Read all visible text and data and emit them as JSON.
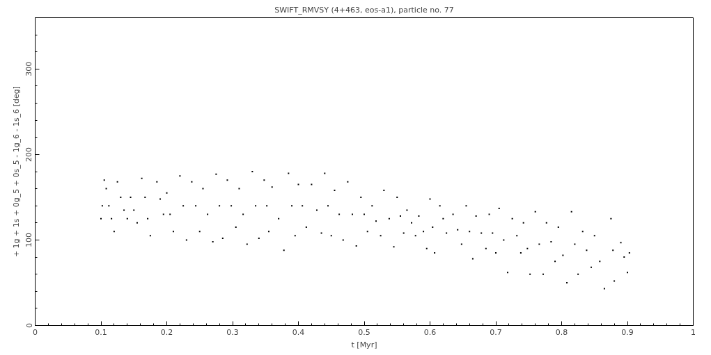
{
  "chart_data": {
    "type": "scatter",
    "title": "SWIFT_RMVSY (4+463, eos-a1), particle no. 77",
    "xlabel": "t [Myr]",
    "ylabel": "+ 1g + 1s + 0g_5 + 0s_5 - 1g_6 - 1s_6 [deg]",
    "xlim": [
      0,
      1
    ],
    "ylim": [
      0,
      360
    ],
    "xticks": [
      0,
      0.1,
      0.2,
      0.3,
      0.4,
      0.5,
      0.6,
      0.7,
      0.8,
      0.9,
      1
    ],
    "yticks": [
      0,
      100,
      200,
      300
    ],
    "grid": false,
    "marker": "square",
    "series": [
      {
        "color": "#000000",
        "x": [
          0.1,
          0.102,
          0.105,
          0.108,
          0.112,
          0.116,
          0.12,
          0.125,
          0.13,
          0.135,
          0.14,
          0.145,
          0.15,
          0.155,
          0.162,
          0.167,
          0.171,
          0.175,
          0.185,
          0.19,
          0.195,
          0.2,
          0.205,
          0.21,
          0.22,
          0.225,
          0.23,
          0.238,
          0.244,
          0.25,
          0.255,
          0.262,
          0.27,
          0.275,
          0.28,
          0.285,
          0.292,
          0.298,
          0.305,
          0.31,
          0.316,
          0.322,
          0.33,
          0.335,
          0.34,
          0.348,
          0.352,
          0.355,
          0.36,
          0.37,
          0.378,
          0.385,
          0.39,
          0.395,
          0.4,
          0.406,
          0.412,
          0.42,
          0.428,
          0.435,
          0.44,
          0.445,
          0.45,
          0.455,
          0.462,
          0.468,
          0.475,
          0.482,
          0.488,
          0.495,
          0.5,
          0.505,
          0.512,
          0.518,
          0.525,
          0.53,
          0.538,
          0.545,
          0.55,
          0.555,
          0.56,
          0.565,
          0.572,
          0.578,
          0.583,
          0.59,
          0.595,
          0.6,
          0.604,
          0.607,
          0.615,
          0.62,
          0.625,
          0.635,
          0.642,
          0.648,
          0.655,
          0.66,
          0.665,
          0.67,
          0.678,
          0.685,
          0.69,
          0.695,
          0.7,
          0.705,
          0.712,
          0.718,
          0.725,
          0.732,
          0.738,
          0.742,
          0.748,
          0.752,
          0.76,
          0.766,
          0.772,
          0.777,
          0.784,
          0.79,
          0.795,
          0.802,
          0.808,
          0.815,
          0.82,
          0.825,
          0.832,
          0.838,
          0.845,
          0.85,
          0.858,
          0.865,
          0.875,
          0.878,
          0.88,
          0.89,
          0.895,
          0.9,
          0.903
        ],
        "values": [
          125,
          140,
          170,
          160,
          140,
          125,
          110,
          168,
          150,
          135,
          125,
          150,
          135,
          120,
          172,
          150,
          125,
          105,
          168,
          148,
          130,
          155,
          130,
          110,
          175,
          140,
          100,
          168,
          140,
          110,
          160,
          130,
          98,
          177,
          140,
          102,
          170,
          140,
          115,
          160,
          130,
          95,
          180,
          140,
          102,
          170,
          140,
          110,
          162,
          125,
          88,
          178,
          140,
          105,
          165,
          140,
          115,
          165,
          135,
          108,
          178,
          140,
          105,
          158,
          130,
          100,
          168,
          130,
          93,
          150,
          130,
          110,
          140,
          122,
          105,
          158,
          125,
          92,
          150,
          128,
          108,
          135,
          120,
          105,
          128,
          110,
          90,
          148,
          115,
          85,
          140,
          125,
          108,
          130,
          112,
          95,
          140,
          110,
          78,
          128,
          108,
          90,
          130,
          108,
          85,
          137,
          100,
          62,
          125,
          105,
          85,
          120,
          90,
          60,
          133,
          95,
          60,
          120,
          98,
          75,
          115,
          82,
          50,
          133,
          95,
          60,
          110,
          88,
          68,
          105,
          75,
          43,
          125,
          88,
          52,
          97,
          80,
          62,
          85
        ]
      }
    ]
  }
}
